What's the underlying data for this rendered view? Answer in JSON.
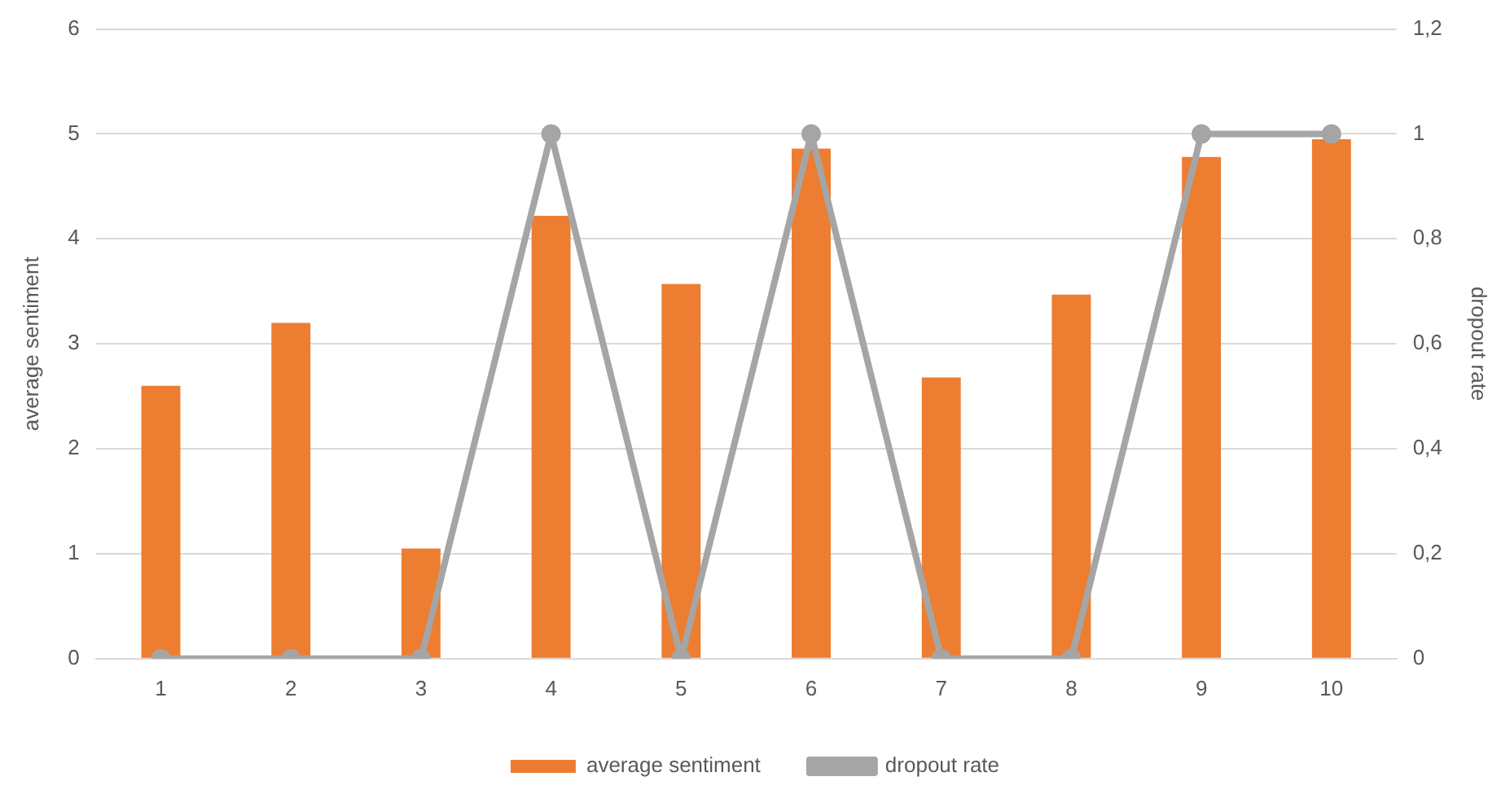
{
  "chart_data": {
    "type": "bar",
    "categories": [
      "1",
      "2",
      "3",
      "4",
      "5",
      "6",
      "7",
      "8",
      "9",
      "10"
    ],
    "ylabel": "average sentiment",
    "y2label": "dropout rate",
    "ylim": [
      0,
      6
    ],
    "yticks": [
      0,
      1,
      2,
      3,
      4,
      5,
      6
    ],
    "y2lim": [
      0,
      1.2
    ],
    "y2ticks": [
      0,
      {
        "value": 0.2,
        "label": "0,2"
      },
      {
        "value": 0.4,
        "label": "0,4"
      },
      {
        "value": 0.6,
        "label": "0,6"
      },
      {
        "value": 0.8,
        "label": "0,8"
      },
      1,
      {
        "value": 1.2,
        "label": "1,2"
      }
    ],
    "series": [
      {
        "name": "average sentiment",
        "color": "#ed7d31",
        "values": [
          2.6,
          3.2,
          1.05,
          4.22,
          3.57,
          4.86,
          2.68,
          3.47,
          4.78,
          4.95
        ]
      },
      {
        "name": "dropout rate",
        "type": "line",
        "axis": "y2",
        "color": "#a5a5a5",
        "values": [
          0,
          0,
          0,
          1,
          0,
          1,
          0,
          0,
          1,
          1
        ]
      }
    ],
    "grid": "y",
    "legend": "bottom",
    "marker": "circle"
  }
}
